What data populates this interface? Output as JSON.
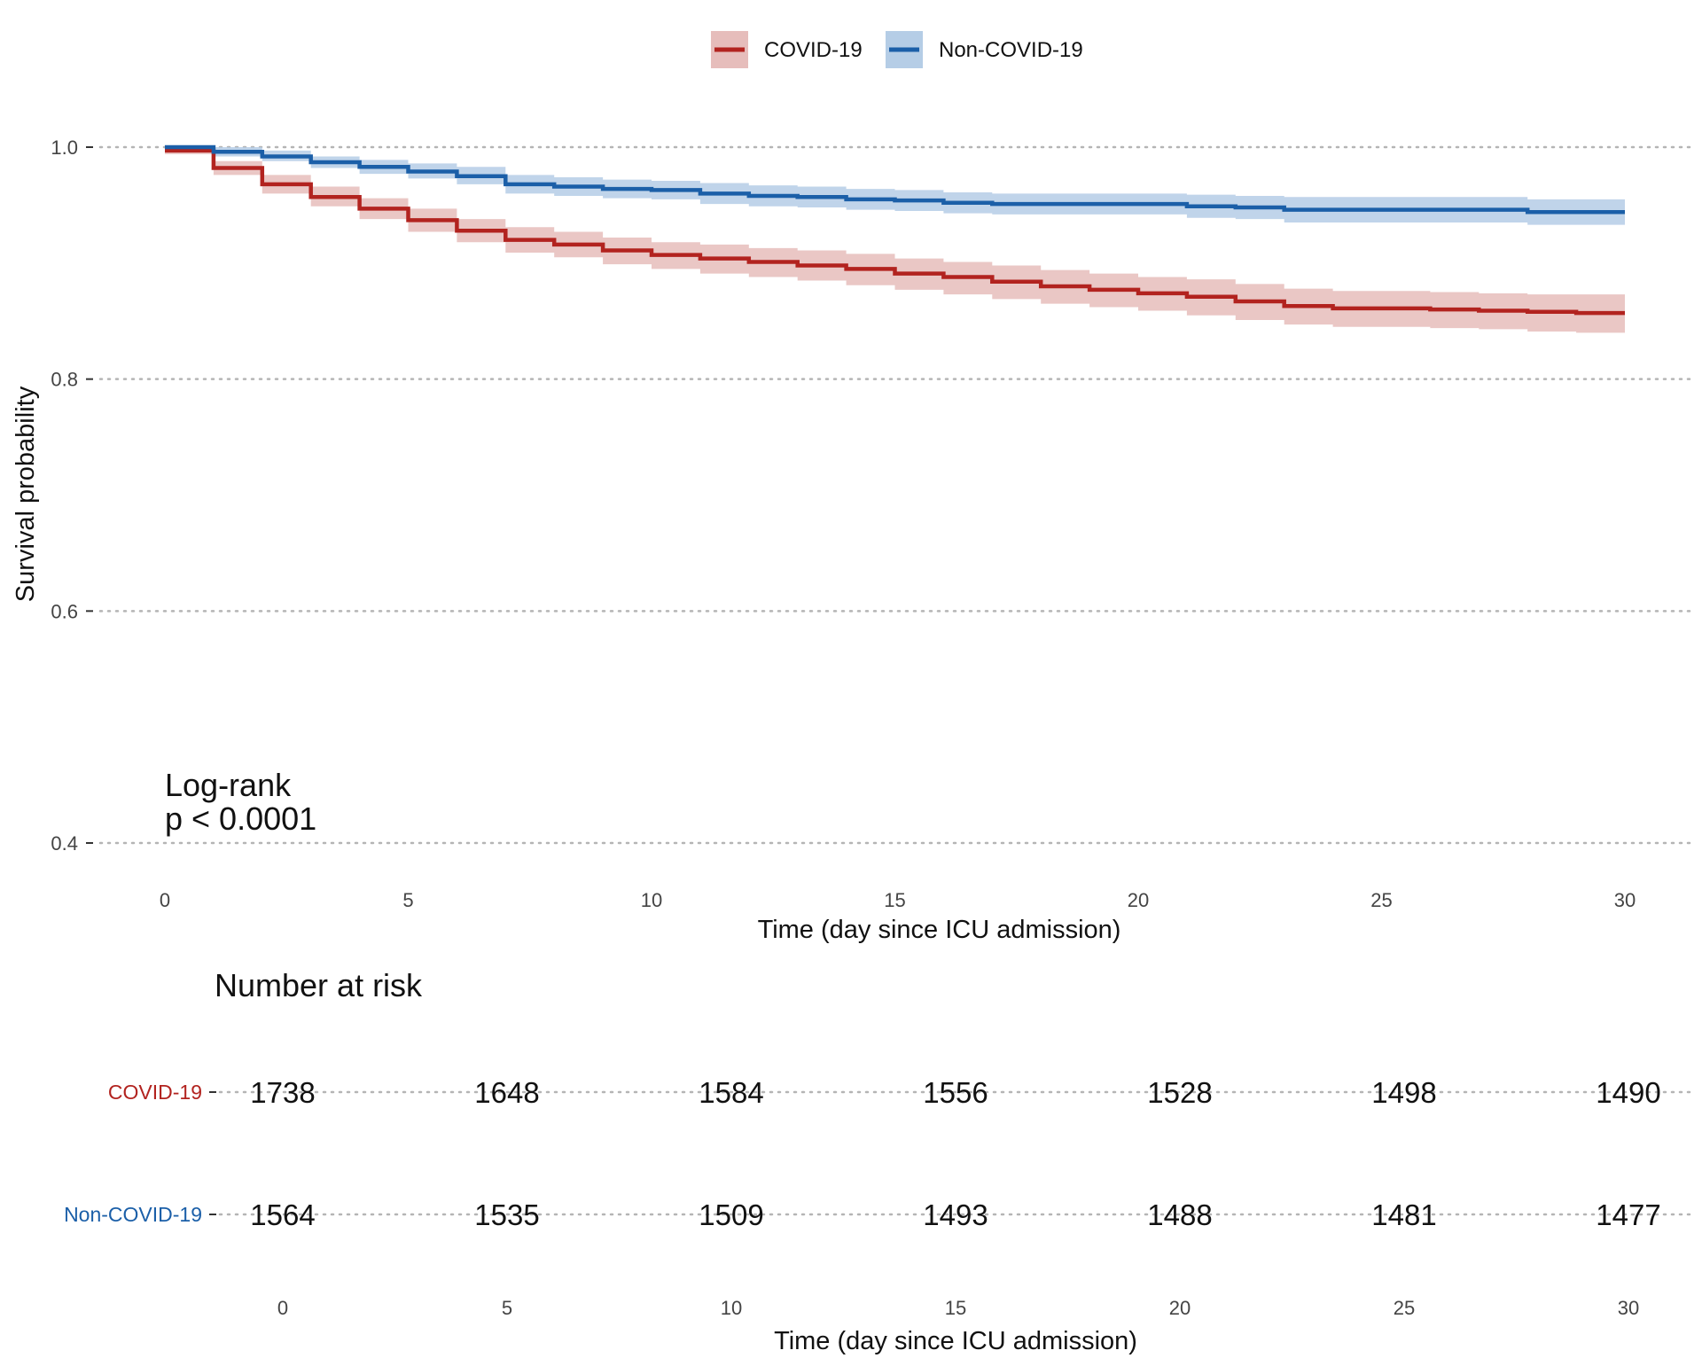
{
  "colors": {
    "covid": "#B2231F",
    "covid_band": "#E6BDBB",
    "noncovid": "#1B5FA8",
    "noncovid_band": "#B5CDE6",
    "grid": "#b5b5b5"
  },
  "legend": {
    "position": "top",
    "items": [
      {
        "label": "COVID-19",
        "color": "#B2231F"
      },
      {
        "label": "Non-COVID-19",
        "color": "#1B5FA8"
      }
    ]
  },
  "annotation": {
    "line1": "Log-rank",
    "line2": "p < 0.0001"
  },
  "chart_data": [
    {
      "type": "line",
      "subtype": "kaplan-meier step",
      "ylabel": "Survival probability",
      "xlabel": "Time (day since ICU admission)",
      "xlim": [
        0,
        30
      ],
      "ylim": [
        0.4,
        1.0
      ],
      "xticks": [
        0,
        5,
        10,
        15,
        20,
        25,
        30
      ],
      "yticks": [
        0.4,
        0.6,
        0.8,
        1.0
      ],
      "ytick_labels": [
        "0.4",
        "0.6",
        "0.8",
        "1.0"
      ],
      "grid": "horizontal dotted",
      "legend_placement": "top",
      "x": [
        0,
        1,
        2,
        3,
        4,
        5,
        6,
        7,
        8,
        9,
        10,
        11,
        12,
        13,
        14,
        15,
        16,
        17,
        18,
        19,
        20,
        21,
        22,
        23,
        24,
        25,
        26,
        27,
        28,
        29,
        30
      ],
      "series": [
        {
          "name": "COVID-19",
          "values": [
            0.997,
            0.982,
            0.968,
            0.957,
            0.947,
            0.937,
            0.928,
            0.92,
            0.916,
            0.911,
            0.907,
            0.904,
            0.901,
            0.898,
            0.895,
            0.891,
            0.888,
            0.884,
            0.88,
            0.877,
            0.874,
            0.871,
            0.867,
            0.863,
            0.861,
            0.861,
            0.86,
            0.859,
            0.858,
            0.857,
            0.857
          ],
          "lower": [
            0.994,
            0.976,
            0.96,
            0.949,
            0.938,
            0.927,
            0.918,
            0.909,
            0.905,
            0.899,
            0.895,
            0.891,
            0.888,
            0.885,
            0.881,
            0.877,
            0.873,
            0.869,
            0.865,
            0.862,
            0.859,
            0.855,
            0.851,
            0.847,
            0.845,
            0.845,
            0.844,
            0.843,
            0.841,
            0.84,
            0.84
          ],
          "upper": [
            1.0,
            0.988,
            0.976,
            0.966,
            0.956,
            0.947,
            0.938,
            0.931,
            0.927,
            0.922,
            0.918,
            0.916,
            0.913,
            0.911,
            0.908,
            0.904,
            0.901,
            0.898,
            0.894,
            0.891,
            0.888,
            0.886,
            0.882,
            0.878,
            0.876,
            0.876,
            0.875,
            0.874,
            0.873,
            0.873,
            0.873
          ]
        },
        {
          "name": "Non-COVID-19",
          "values": [
            1.0,
            0.996,
            0.992,
            0.987,
            0.983,
            0.979,
            0.975,
            0.968,
            0.966,
            0.964,
            0.963,
            0.96,
            0.958,
            0.957,
            0.955,
            0.954,
            0.952,
            0.951,
            0.951,
            0.951,
            0.951,
            0.949,
            0.948,
            0.946,
            0.946,
            0.946,
            0.946,
            0.946,
            0.944,
            0.944,
            0.944
          ],
          "lower": [
            0.998,
            0.992,
            0.988,
            0.982,
            0.977,
            0.973,
            0.968,
            0.96,
            0.958,
            0.956,
            0.955,
            0.951,
            0.949,
            0.948,
            0.946,
            0.945,
            0.943,
            0.942,
            0.942,
            0.942,
            0.942,
            0.939,
            0.938,
            0.935,
            0.935,
            0.935,
            0.935,
            0.935,
            0.933,
            0.933,
            0.933
          ],
          "upper": [
            1.0,
            1.0,
            0.997,
            0.992,
            0.989,
            0.986,
            0.983,
            0.976,
            0.974,
            0.972,
            0.971,
            0.969,
            0.967,
            0.966,
            0.964,
            0.963,
            0.961,
            0.96,
            0.96,
            0.96,
            0.96,
            0.959,
            0.958,
            0.957,
            0.957,
            0.957,
            0.957,
            0.957,
            0.955,
            0.955,
            0.955
          ]
        }
      ]
    },
    {
      "type": "table",
      "title": "Number at risk",
      "xlabel": "Time (day since ICU admission)",
      "columns": [
        0,
        5,
        10,
        15,
        20,
        25,
        30
      ],
      "rows": [
        {
          "name": "COVID-19",
          "values": [
            1738,
            1648,
            1584,
            1556,
            1528,
            1498,
            1490
          ]
        },
        {
          "name": "Non-COVID-19",
          "values": [
            1564,
            1535,
            1509,
            1493,
            1488,
            1481,
            1477
          ]
        }
      ]
    }
  ]
}
